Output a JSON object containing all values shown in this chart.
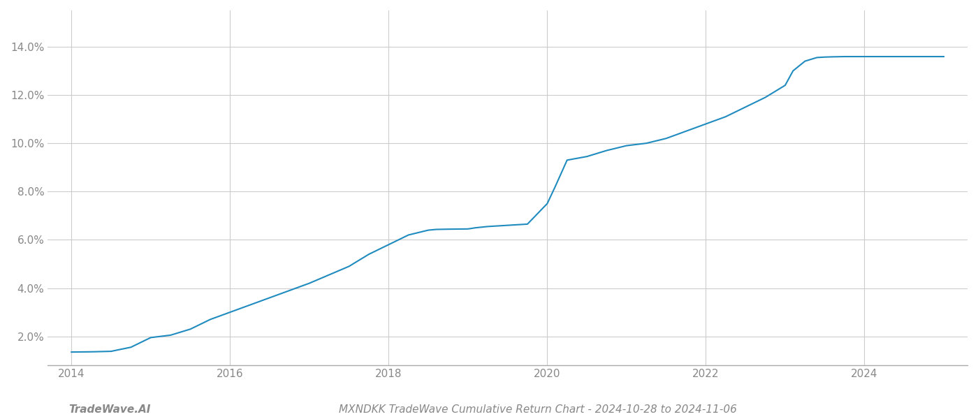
{
  "x_values": [
    2014.0,
    2014.25,
    2014.5,
    2014.75,
    2015.0,
    2015.25,
    2015.5,
    2015.75,
    2016.0,
    2016.25,
    2016.5,
    2016.75,
    2017.0,
    2017.25,
    2017.5,
    2017.75,
    2018.0,
    2018.25,
    2018.5,
    2018.6,
    2018.75,
    2019.0,
    2019.1,
    2019.25,
    2019.5,
    2019.6,
    2019.75,
    2020.0,
    2020.1,
    2020.25,
    2020.5,
    2020.75,
    2021.0,
    2021.25,
    2021.5,
    2021.75,
    2022.0,
    2022.25,
    2022.5,
    2022.75,
    2023.0,
    2023.1,
    2023.25,
    2023.4,
    2023.5,
    2023.6,
    2023.75,
    2024.0,
    2024.25,
    2024.5,
    2024.75,
    2025.0
  ],
  "y_values": [
    1.35,
    1.36,
    1.38,
    1.55,
    1.95,
    2.05,
    2.3,
    2.7,
    3.0,
    3.3,
    3.6,
    3.9,
    4.2,
    4.55,
    4.9,
    5.4,
    5.8,
    6.2,
    6.4,
    6.43,
    6.44,
    6.45,
    6.5,
    6.55,
    6.6,
    6.62,
    6.65,
    7.5,
    8.2,
    9.3,
    9.45,
    9.7,
    9.9,
    10.0,
    10.2,
    10.5,
    10.8,
    11.1,
    11.5,
    11.9,
    12.4,
    13.0,
    13.4,
    13.55,
    13.57,
    13.58,
    13.59,
    13.59,
    13.59,
    13.59,
    13.59,
    13.59
  ],
  "line_color": "#1f8bbf",
  "line_width": 1.5,
  "title": "MXNDKK TradeWave Cumulative Return Chart - 2024-10-28 to 2024-11-06",
  "watermark": "TradeWave.AI",
  "xlim": [
    2013.7,
    2025.3
  ],
  "ylim": [
    0.8,
    15.5
  ],
  "yticks": [
    2.0,
    4.0,
    6.0,
    8.0,
    10.0,
    12.0,
    14.0
  ],
  "ytick_labels": [
    "2.0%",
    "4.0%",
    "6.0%",
    "8.0%",
    "10.0%",
    "12.0%",
    "14.0%"
  ],
  "xticks": [
    2014,
    2016,
    2018,
    2020,
    2022,
    2024
  ],
  "xtick_labels": [
    "2014",
    "2016",
    "2018",
    "2020",
    "2022",
    "2024"
  ],
  "grid_color": "#cccccc",
  "bg_color": "#ffffff",
  "title_fontsize": 11,
  "watermark_fontsize": 11,
  "tick_fontsize": 11,
  "tick_color": "#888888"
}
